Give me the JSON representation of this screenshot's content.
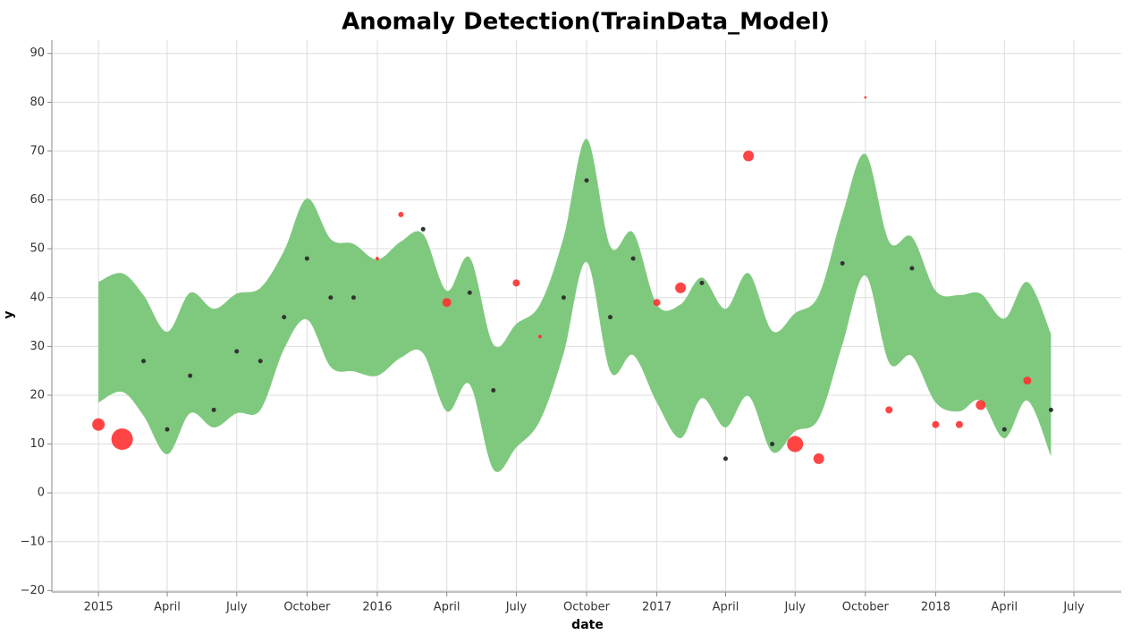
{
  "chart_data": {
    "type": "scatter",
    "title": "Anomaly Detection(TrainData_Model)",
    "x_label": "date",
    "y_label": "y",
    "x": [
      "2015-01",
      "2015-02",
      "2015-03",
      "2015-04",
      "2015-05",
      "2015-06",
      "2015-07",
      "2015-08",
      "2015-09",
      "2015-10",
      "2015-11",
      "2015-12",
      "2016-01",
      "2016-02",
      "2016-03",
      "2016-04",
      "2016-05",
      "2016-06",
      "2016-07",
      "2016-08",
      "2016-09",
      "2016-10",
      "2016-11",
      "2016-12",
      "2017-01",
      "2017-02",
      "2017-03",
      "2017-04",
      "2017-05",
      "2017-06",
      "2017-07",
      "2017-08",
      "2017-09",
      "2017-10",
      "2017-11",
      "2017-12",
      "2018-01",
      "2018-02",
      "2018-03",
      "2018-04",
      "2018-05",
      "2018-06"
    ],
    "band": {
      "color": "#7fc97f",
      "upper": [
        43.2,
        45,
        40.5,
        33,
        41,
        37.7,
        40.8,
        42,
        49.6,
        60.3,
        52,
        51,
        47.8,
        51.5,
        53,
        41.4,
        48.2,
        30.4,
        34.6,
        38.6,
        52.4,
        72.5,
        50.5,
        53.3,
        38.6,
        38.6,
        44.1,
        37.7,
        45,
        33.2,
        36.8,
        40.5,
        57,
        69.4,
        51.5,
        52.4,
        41.4,
        40.5,
        40.8,
        35.7,
        43.2,
        32.6
      ],
      "lower": [
        18.5,
        20.7,
        15.8,
        7.9,
        16.3,
        13.4,
        16.3,
        17,
        29.5,
        35.5,
        25.8,
        24.9,
        24,
        27.7,
        28.6,
        16.7,
        22.2,
        4.8,
        9.3,
        14.8,
        28.6,
        47.3,
        24.9,
        28.2,
        18.5,
        11.2,
        19.4,
        13.4,
        19.8,
        8.4,
        12.6,
        15.2,
        30.4,
        44.5,
        26.7,
        28,
        18.5,
        16.7,
        18.9,
        11.2,
        18.9,
        7.5
      ]
    },
    "series": [
      {
        "color": "#333333",
        "values": [
          null,
          null,
          27,
          13,
          24,
          17,
          29,
          27,
          36,
          48,
          40,
          40,
          null,
          null,
          54,
          null,
          41,
          21,
          null,
          null,
          40,
          64,
          36,
          48,
          null,
          null,
          43,
          7,
          null,
          10,
          null,
          null,
          47,
          null,
          null,
          46,
          null,
          null,
          null,
          13,
          null,
          17
        ]
      },
      {
        "color": "#ff3030",
        "values": [
          14,
          11,
          null,
          null,
          null,
          null,
          null,
          null,
          null,
          null,
          null,
          null,
          48,
          57,
          null,
          39,
          null,
          null,
          43,
          32,
          null,
          null,
          null,
          null,
          39,
          42,
          null,
          null,
          69,
          null,
          10,
          7,
          null,
          81,
          17,
          null,
          14,
          14,
          18,
          null,
          23,
          null
        ],
        "sizes": [
          49,
          144,
          null,
          null,
          null,
          null,
          null,
          null,
          null,
          null,
          null,
          null,
          4,
          9,
          null,
          25,
          null,
          null,
          16,
          4,
          null,
          null,
          null,
          null,
          16,
          36,
          null,
          null,
          36,
          null,
          81,
          36,
          null,
          2,
          16,
          null,
          16,
          16,
          30,
          null,
          20,
          null
        ]
      }
    ],
    "xlim": [
      "2014-11",
      "2018-09"
    ],
    "xticks": [
      {
        "value": "2015-01",
        "label": "2015"
      },
      {
        "value": "2015-04",
        "label": "April"
      },
      {
        "value": "2015-07",
        "label": "July"
      },
      {
        "value": "2015-10",
        "label": "October"
      },
      {
        "value": "2016-01",
        "label": "2016"
      },
      {
        "value": "2016-04",
        "label": "April"
      },
      {
        "value": "2016-07",
        "label": "July"
      },
      {
        "value": "2016-10",
        "label": "October"
      },
      {
        "value": "2017-01",
        "label": "2017"
      },
      {
        "value": "2017-04",
        "label": "April"
      },
      {
        "value": "2017-07",
        "label": "July"
      },
      {
        "value": "2017-10",
        "label": "October"
      },
      {
        "value": "2018-01",
        "label": "2018"
      },
      {
        "value": "2018-04",
        "label": "April"
      },
      {
        "value": "2018-07",
        "label": "July"
      }
    ],
    "ylim": [
      -20.3,
      92.7
    ],
    "yticks": [
      {
        "value": -20,
        "label": "−20"
      },
      {
        "value": -10,
        "label": "−10"
      },
      0,
      10,
      20,
      30,
      40,
      50,
      60,
      70,
      80,
      90
    ],
    "grid": true
  }
}
